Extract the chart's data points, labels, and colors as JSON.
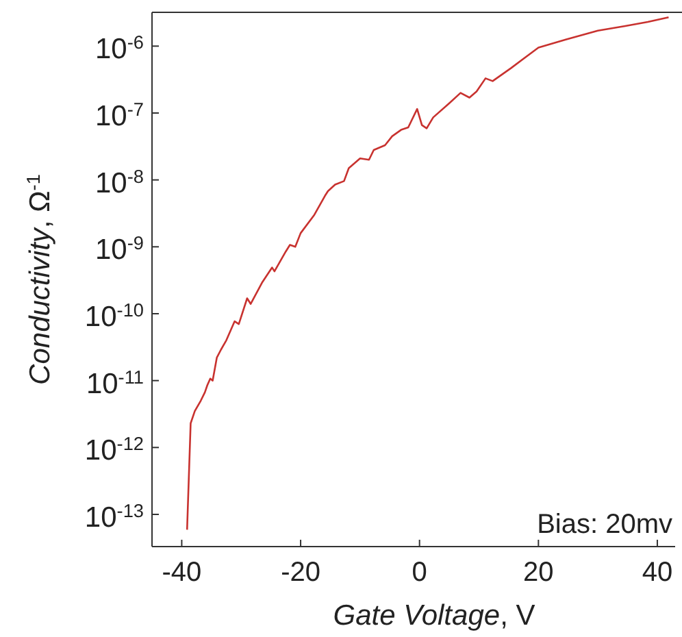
{
  "chart_data": {
    "type": "line",
    "xlabel": "Gate Voltage, V",
    "ylabel": "Conductivity, Ω$^{-1}$",
    "log": "y",
    "grid": false,
    "line_style": "solid",
    "xlim": [
      -45,
      43
    ],
    "xticks": [
      -40,
      -20,
      0,
      20,
      40
    ],
    "ylim": [
      3.3e-14,
      3.2e-06
    ],
    "yticks": [
      {
        "value": 1e-13,
        "label": "10$^{-13}$"
      },
      {
        "value": 1e-12,
        "label": "10$^{-12}$"
      },
      {
        "value": 1e-11,
        "label": "10$^{-11}$"
      },
      {
        "value": 1e-10,
        "label": "10$^{-10}$"
      },
      {
        "value": 1e-09,
        "label": "10$^{-9}$"
      },
      {
        "value": 1e-08,
        "label": "10$^{-8}$"
      },
      {
        "value": 1e-07,
        "label": "10$^{-7}$"
      },
      {
        "value": 1e-06,
        "label": "10$^{-6}$"
      }
    ],
    "annotations": [
      "Bias: 20mv"
    ],
    "x": [
      -39.1,
      -38.5,
      -37.8,
      -36.8,
      -36.1,
      -35.7,
      -35.2,
      -34.8,
      -34.1,
      -33.4,
      -32.5,
      -31.1,
      -30.4,
      -29.0,
      -28.4,
      -26.5,
      -24.8,
      -24.4,
      -22.5,
      -21.8,
      -20.9,
      -20.0,
      -17.7,
      -15.9,
      -15.4,
      -14.2,
      -12.7,
      -11.9,
      -10.0,
      -8.5,
      -7.7,
      -5.8,
      -4.6,
      -3.1,
      -1.9,
      -0.4,
      0.4,
      1.2,
      2.3,
      5.0,
      6.9,
      8.4,
      9.6,
      11.1,
      12.3,
      15.4,
      20.0,
      24.6,
      30.0,
      34.6,
      38.4,
      41.9
    ],
    "series": [
      {
        "color": "#c8322f",
        "values": [
          5.9e-14,
          2.3e-12,
          3.5e-12,
          5e-12,
          6.7e-12,
          8.5e-12,
          1.07e-11,
          1e-11,
          2.2e-11,
          2.9e-11,
          4e-11,
          7.7e-11,
          7e-11,
          1.7e-10,
          1.4e-10,
          2.9e-10,
          4.9e-10,
          4.3e-10,
          8.5e-10,
          1.07e-09,
          1e-09,
          1.6e-09,
          3e-09,
          5.8e-09,
          6.8e-09,
          8.5e-09,
          9.6e-09,
          1.5e-08,
          2.1e-08,
          2e-08,
          2.8e-08,
          3.3e-08,
          4.5e-08,
          5.6e-08,
          6.1e-08,
          1.15e-07,
          6.6e-08,
          5.9e-08,
          8.6e-08,
          1.4e-07,
          2e-07,
          1.7e-07,
          2.1e-07,
          3.3e-07,
          3e-07,
          4.7e-07,
          9.5e-07,
          1.25e-06,
          1.7e-06,
          2e-06,
          2.3e-06,
          2.7e-06
        ]
      }
    ]
  }
}
